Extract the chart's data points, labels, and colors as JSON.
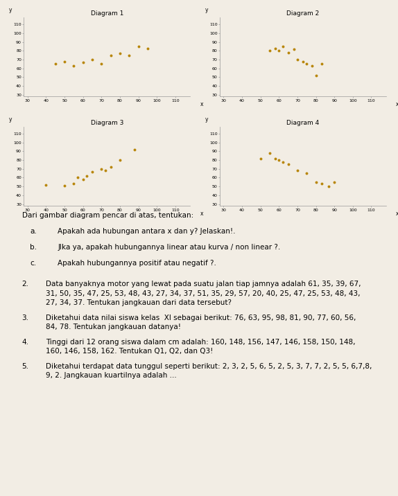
{
  "background_color": "#f2ede4",
  "dot_color": "#b8860b",
  "dot_size": 8,
  "diagrams": [
    {
      "title": "Diagram 1",
      "x": [
        45,
        50,
        55,
        60,
        65,
        70,
        75,
        80,
        85,
        90,
        95
      ],
      "y": [
        65,
        68,
        63,
        67,
        70,
        65,
        75,
        77,
        75,
        85,
        83
      ]
    },
    {
      "title": "Diagram 2",
      "x": [
        55,
        58,
        60,
        62,
        65,
        68,
        70,
        73,
        75,
        78,
        80,
        83
      ],
      "y": [
        80,
        83,
        80,
        85,
        78,
        82,
        70,
        68,
        65,
        63,
        52,
        65
      ]
    },
    {
      "title": "Diagram 3",
      "x": [
        40,
        50,
        55,
        57,
        60,
        62,
        65,
        70,
        72,
        75,
        80,
        88
      ],
      "y": [
        52,
        51,
        53,
        60,
        58,
        62,
        67,
        70,
        68,
        72,
        80,
        92
      ]
    },
    {
      "title": "Diagram 4",
      "x": [
        50,
        55,
        58,
        60,
        62,
        65,
        70,
        75,
        80,
        83,
        87,
        90
      ],
      "y": [
        82,
        88,
        82,
        80,
        78,
        75,
        68,
        65,
        55,
        53,
        50,
        55
      ]
    }
  ],
  "xlim": [
    28,
    118
  ],
  "ylim": [
    28,
    118
  ],
  "xticks": [
    30,
    40,
    50,
    60,
    70,
    80,
    90,
    100,
    110
  ],
  "yticks": [
    30,
    40,
    50,
    60,
    70,
    80,
    90,
    100,
    110
  ],
  "xlabel": "x",
  "ylabel": "y",
  "tick_fontsize": 4.5,
  "label_fontsize": 5.5,
  "title_fontsize": 6.5,
  "intro_text": "Dari gambar diagram pencar di atas, tentukan:",
  "abc_items": [
    [
      "a.",
      "Apakah ada hubungan antara x dan y? Jelaskan!."
    ],
    [
      "b.",
      "JIka ya, apakah hubungannya linear atau kurva / non linear ?."
    ],
    [
      "c.",
      "Apakah hubungannya positif atau negatif ?."
    ]
  ],
  "numbered_items": [
    [
      "2.",
      "Data banyaknya motor yang lewat pada suatu jalan tiap jamnya adalah 61, 35, 39, 67,\n31, 50, 35, 47, 25, 53, 48, 43, 27, 34, 37, 51, 35, 29, 57, 20, 40, 25, 47, 25, 53, 48, 43,\n27, 34, 37. Tentukan jangkauan dari data tersebut?"
    ],
    [
      "3.",
      "Diketahui data nilai siswa kelas  XI sebagai berikut: 76, 63, 95, 98, 81, 90, 77, 60, 56,\n84, 78. Tentukan jangkauan datanya!"
    ],
    [
      "4.",
      "Tinggi dari 12 orang siswa dalam cm adalah: 160, 148, 156, 147, 146, 158, 150, 148,\n160, 146, 158, 162. Tentukan Q1, Q2, dan Q3!"
    ],
    [
      "5.",
      "Diketahui terdapat data tunggul seperti berikut: 2, 3, 2, 5, 6, 5, 2, 5, 3, 7, 7, 2, 5, 5, 6,7,8,\n9, 2. Jangkauan kuartilnya adalah ..."
    ]
  ]
}
